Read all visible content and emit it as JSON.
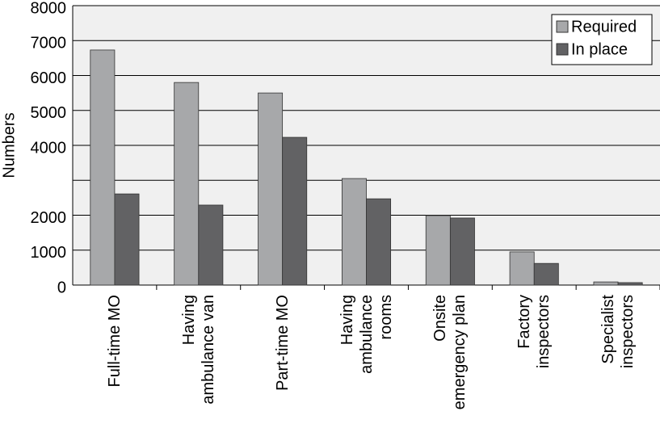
{
  "chart_data": {
    "type": "bar",
    "y_label": "Numbers",
    "categories": [
      "Full-time MO",
      "Having\nambulance van",
      "Part-time MO",
      "Having\nambulance\nrooms",
      "Onsite\nemergency plan",
      "Factory\ninspectors",
      "Specialist\ninspectors"
    ],
    "series": [
      {
        "name": "Required",
        "color": "#a7a8aa",
        "values": [
          6730,
          5800,
          5500,
          3050,
          1990,
          950,
          90
        ]
      },
      {
        "name": "In place",
        "color": "#626264",
        "values": [
          2610,
          2290,
          4230,
          2470,
          1920,
          620,
          70
        ]
      }
    ],
    "ylim": [
      0,
      8000
    ],
    "yticks": [
      0,
      1000,
      2000,
      {
        "value": 3000,
        "label": null
      },
      {
        "value": 4000,
        "label": "4000"
      },
      5000,
      6000,
      7000,
      8000
    ],
    "grid": true,
    "legend": "upper right"
  }
}
